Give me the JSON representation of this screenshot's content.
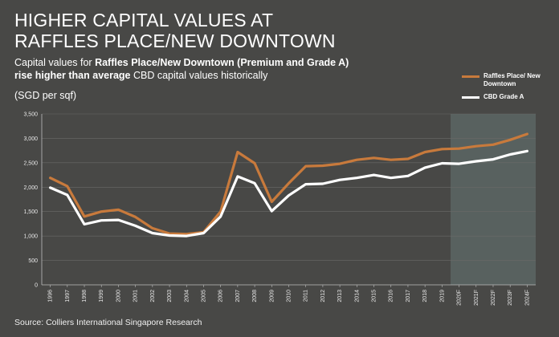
{
  "header": {
    "title_line1": "HIGHER CAPITAL VALUES AT",
    "title_line2": "RAFFLES PLACE/NEW DOWNTOWN",
    "subtitle_a": "Capital values for ",
    "subtitle_b": "Raffles Place/New Downtown (Premium and Grade A)",
    "subtitle_c": "rise higher than average",
    "subtitle_d": " CBD capital values historically",
    "unit": "(SGD per sqf)"
  },
  "source": "Source: Colliers International Singapore Research",
  "colors": {
    "raffles": "#c87a3c",
    "cbd": "#ffffff",
    "forecast_band": "#5a6462",
    "grid": "#6a6a68"
  },
  "chart_data": {
    "type": "line",
    "categories": [
      "1996",
      "1997",
      "1998",
      "1999",
      "2000",
      "2001",
      "2002",
      "2003",
      "2004",
      "2005",
      "2006",
      "2007",
      "2008",
      "2009",
      "2010",
      "2011",
      "2012",
      "2013",
      "2014",
      "2015",
      "2016",
      "2017",
      "2018",
      "2019",
      "2020F",
      "2021F",
      "2022F",
      "2023F",
      "2024F"
    ],
    "series": [
      {
        "name": "Raffles Place/ New Downtown",
        "color": "#c87a3c",
        "values": [
          2190,
          2020,
          1400,
          1500,
          1540,
          1390,
          1160,
          1050,
          1040,
          1080,
          1500,
          2720,
          2490,
          1700,
          2080,
          2430,
          2440,
          2480,
          2560,
          2600,
          2560,
          2580,
          2720,
          2780,
          2790,
          2840,
          2870,
          2970,
          3090
        ]
      },
      {
        "name": "CBD Grade A",
        "color": "#ffffff",
        "values": [
          1990,
          1840,
          1240,
          1320,
          1330,
          1210,
          1060,
          1010,
          1000,
          1060,
          1400,
          2220,
          2080,
          1510,
          1830,
          2060,
          2070,
          2150,
          2190,
          2250,
          2190,
          2230,
          2400,
          2490,
          2480,
          2530,
          2570,
          2670,
          2740
        ]
      }
    ],
    "ylim": [
      0,
      3500
    ],
    "yticks": [
      "0",
      "500",
      "1,000",
      "1,500",
      "2,000",
      "2,500",
      "3,000",
      "3,500"
    ],
    "forecast_start": "2020F",
    "grid": true,
    "legend_position": "top-right"
  }
}
